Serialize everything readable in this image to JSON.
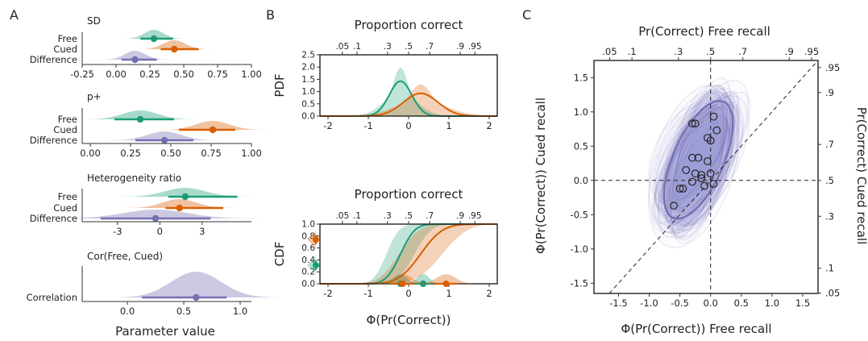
{
  "panels": {
    "a": "A",
    "b": "B",
    "c": "C"
  },
  "colors": {
    "free": "#1b9e77",
    "cued": "#d95f02",
    "difference": "#7570b3",
    "axis": "#333333"
  },
  "chart_data": [
    {
      "type": "interval",
      "panel": "A",
      "title": "SD",
      "categories": [
        "Free",
        "Cued",
        "Difference"
      ],
      "series": [
        {
          "name": "Free",
          "median": 0.28,
          "ci95": [
            0.18,
            0.42
          ]
        },
        {
          "name": "Cued",
          "median": 0.43,
          "ci95": [
            0.33,
            0.61
          ]
        },
        {
          "name": "Difference",
          "median": 0.14,
          "ci95": [
            0.04,
            0.3
          ]
        }
      ],
      "xlim": [
        -0.25,
        1.0
      ],
      "xticks": [
        -0.25,
        0.0,
        0.25,
        0.5,
        0.75,
        1.0
      ],
      "xticklabels": [
        "-0.25",
        "0.00",
        "0.25",
        "0.50",
        "0.75",
        "1.00"
      ]
    },
    {
      "type": "interval",
      "panel": "A",
      "title": "p+",
      "categories": [
        "Free",
        "Cued",
        "Difference"
      ],
      "series": [
        {
          "name": "Free",
          "median": 0.31,
          "ci95": [
            0.15,
            0.52
          ]
        },
        {
          "name": "Cued",
          "median": 0.76,
          "ci95": [
            0.55,
            0.9
          ]
        },
        {
          "name": "Difference",
          "median": 0.46,
          "ci95": [
            0.28,
            0.64
          ]
        }
      ],
      "xlim": [
        -0.05,
        1.0
      ],
      "xticks": [
        0.0,
        0.25,
        0.5,
        0.75,
        1.0
      ],
      "xticklabels": [
        "0.00",
        "0.25",
        "0.50",
        "0.75",
        "1.00"
      ]
    },
    {
      "type": "interval",
      "panel": "A",
      "title": "Heterogeneity ratio",
      "categories": [
        "Free",
        "Cued",
        "Difference"
      ],
      "series": [
        {
          "name": "Free",
          "median": 1.8,
          "ci95": [
            0.6,
            5.5
          ]
        },
        {
          "name": "Cued",
          "median": 1.4,
          "ci95": [
            0.4,
            4.5
          ]
        },
        {
          "name": "Difference",
          "median": -0.3,
          "ci95": [
            -4.2,
            3.6
          ]
        }
      ],
      "xlim": [
        -5.5,
        6.5
      ],
      "xticks": [
        -3,
        0,
        3
      ],
      "xticklabels": [
        "-3",
        "0",
        "3"
      ]
    },
    {
      "type": "interval",
      "panel": "A",
      "title": "Cor(Free, Cued)",
      "categories": [
        "Correlation"
      ],
      "series": [
        {
          "name": "Correlation",
          "median": 0.61,
          "ci95": [
            0.13,
            0.88
          ]
        }
      ],
      "xlim": [
        -0.4,
        1.1
      ],
      "xticks": [
        0.0,
        0.5,
        1.0
      ],
      "xticklabels": [
        "0.0",
        "0.5",
        "1.0"
      ],
      "xlabel": "Parameter value"
    },
    {
      "type": "line",
      "panel": "B",
      "ylabel": "PDF",
      "x_top_label": "Proportion correct",
      "series": [
        {
          "name": "Free",
          "mean": -0.2,
          "sd": 0.28
        },
        {
          "name": "Cued",
          "mean": 0.3,
          "sd": 0.43
        }
      ],
      "xlim": [
        -2.2,
        2.2
      ],
      "ylim": [
        0,
        2.5
      ],
      "xticks": [
        -2,
        -1,
        0,
        1,
        2
      ],
      "yticks": [
        0.0,
        0.5,
        1.0,
        1.5,
        2.0,
        2.5
      ],
      "yticklabels": [
        "0.0",
        "0.5",
        "1.0",
        "1.5",
        "2.0",
        "2.5"
      ],
      "top_ticks": [
        ".05",
        ".1",
        ".3",
        ".5",
        ".7",
        ".9",
        ".95"
      ]
    },
    {
      "type": "line",
      "panel": "B",
      "ylabel": "CDF",
      "x_top_label": "Proportion correct",
      "xlabel": "Φ(Pr(Correct))",
      "series": [
        {
          "name": "Free",
          "mean": -0.2,
          "sd": 0.28,
          "points_x": [
            -0.2,
            0.36
          ],
          "point_y": -2.3
        },
        {
          "name": "Cued",
          "mean": 0.3,
          "sd": 0.43,
          "points_x": [
            -0.15,
            0.93
          ],
          "point_y": -2.3
        }
      ],
      "xlim": [
        -2.2,
        2.2
      ],
      "ylim": [
        0,
        1
      ],
      "xticks": [
        -2,
        -1,
        0,
        1,
        2
      ],
      "yticks": [
        0.0,
        0.2,
        0.4,
        0.6,
        0.8,
        1.0
      ],
      "yticklabels": [
        "0.0",
        "0.2",
        "0.4",
        "0.6",
        "0.8",
        "1.0"
      ],
      "top_ticks": [
        ".05",
        ".1",
        ".3",
        ".5",
        ".7",
        ".9",
        ".95"
      ]
    },
    {
      "type": "scatter",
      "panel": "C",
      "title": "Pr(Correct) Free recall",
      "xlabel": "Φ(Pr(Correct)) Free recall",
      "ylabel": "Φ(Pr(Correct)) Cued recall",
      "right_label": "Pr(Correct) Cued recall",
      "xlim": [
        -1.9,
        1.75
      ],
      "ylim": [
        -1.65,
        1.75
      ],
      "xticks": [
        -1.5,
        -1.0,
        -0.5,
        0.0,
        0.5,
        1.0,
        1.5
      ],
      "xticklabels": [
        "-1.5",
        "-1.0",
        "-0.5",
        "0.0",
        "0.5",
        "1.0",
        "1.5"
      ],
      "yticks": [
        -1.5,
        -1.0,
        -0.5,
        0.0,
        0.5,
        1.0,
        1.5
      ],
      "yticklabels": [
        "-1.5",
        "-1.0",
        "-0.5",
        "0.0",
        "0.5",
        "1.0",
        "1.5"
      ],
      "top_ticks": [
        ".05",
        ".1",
        ".3",
        ".5",
        ".7",
        ".9",
        ".95"
      ],
      "right_ticks": [
        ".95",
        ".9",
        ".7",
        ".5",
        ".3",
        ".1",
        ".05"
      ],
      "ellipse": {
        "mean": [
          -0.2,
          0.3
        ],
        "sd": [
          0.28,
          0.43
        ],
        "r": 0.61
      },
      "points": [
        [
          0.05,
          0.93
        ],
        [
          -0.3,
          0.83
        ],
        [
          -0.25,
          0.83
        ],
        [
          0.1,
          0.73
        ],
        [
          -0.05,
          0.62
        ],
        [
          0.0,
          0.58
        ],
        [
          -0.3,
          0.33
        ],
        [
          -0.2,
          0.33
        ],
        [
          -0.05,
          0.28
        ],
        [
          -0.4,
          0.15
        ],
        [
          -0.25,
          0.1
        ],
        [
          -0.15,
          0.08
        ],
        [
          0.0,
          0.1
        ],
        [
          -0.15,
          0.03
        ],
        [
          -0.3,
          -0.02
        ],
        [
          0.05,
          -0.05
        ],
        [
          -0.1,
          -0.08
        ],
        [
          -0.45,
          -0.12
        ],
        [
          -0.5,
          -0.12
        ],
        [
          -0.6,
          -0.37
        ]
      ]
    }
  ]
}
